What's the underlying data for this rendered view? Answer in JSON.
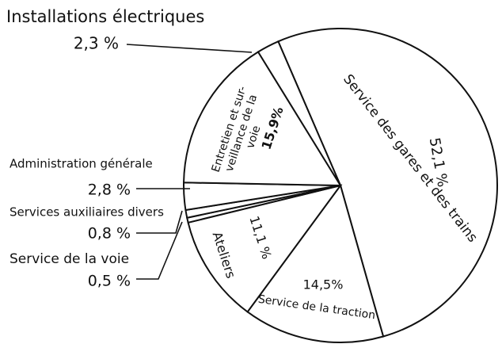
{
  "chart_data": {
    "type": "pie",
    "categories": [
      "Service des gares et des trains",
      "Service de la traction",
      "Ateliers",
      "Service de la voie",
      "Services auxiliaires divers",
      "Administration générale",
      "Entretien et sur-\nveillance de la\nvoie",
      "Installations électriques"
    ],
    "values": [
      52.1,
      14.5,
      11.1,
      0.5,
      0.8,
      2.8,
      15.9,
      2.3
    ],
    "value_labels": [
      "52,1 %",
      "14,5%",
      "11,1 %",
      "0,5 %",
      "0,8 %",
      "2,8 %",
      "15,9%",
      "2,3 %"
    ],
    "color": "#ffffff"
  }
}
